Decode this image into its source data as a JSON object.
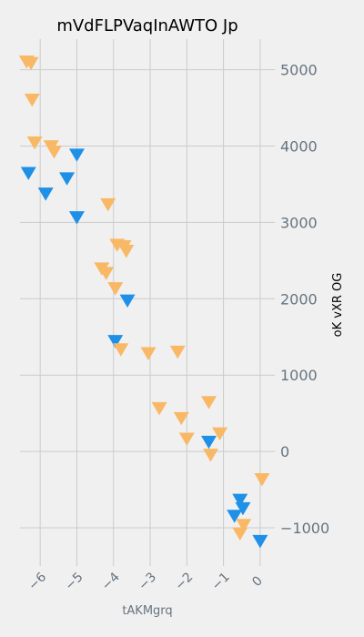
{
  "chart_data": {
    "type": "scatter",
    "title": "mVdFLPVaqInAWTO Jp",
    "xlabel": "tAKMgrq",
    "ylabel": "oK vXR OG",
    "xlim": [
      -6.55,
      0.4
    ],
    "ylim": [
      -1500,
      5400
    ],
    "xticks": [
      -6,
      -5,
      -4,
      -3,
      -2,
      -1,
      0
    ],
    "xtick_labels": [
      "−6",
      "−5",
      "−4",
      "−3",
      "−2",
      "−1",
      "0"
    ],
    "yticks": [
      -1000,
      0,
      1000,
      2000,
      3000,
      4000,
      5000
    ],
    "ytick_labels": [
      "−1000",
      "0",
      "1000",
      "2000",
      "3000",
      "4000",
      "5000"
    ],
    "y_axis_side": "right",
    "grid": true,
    "marker": "triangle-down",
    "colors": [
      "#1e90e8",
      "#f9b865"
    ],
    "series": [
      {
        "color": "#1e90e8",
        "points": [
          [
            -6.32,
            3640
          ],
          [
            -5.85,
            3370
          ],
          [
            -5.0,
            3880
          ],
          [
            -5.27,
            3570
          ],
          [
            -5.0,
            3060
          ],
          [
            -3.62,
            1970
          ],
          [
            -3.95,
            1440
          ],
          [
            -1.4,
            120
          ],
          [
            -0.55,
            -640
          ],
          [
            -0.47,
            -750
          ],
          [
            -0.7,
            -850
          ],
          [
            0.0,
            -1180
          ]
        ]
      },
      {
        "color": "#f9b865",
        "points": [
          [
            -6.37,
            5100
          ],
          [
            -6.25,
            5080
          ],
          [
            -6.22,
            4600
          ],
          [
            -6.15,
            4040
          ],
          [
            -5.7,
            3990
          ],
          [
            -5.62,
            3920
          ],
          [
            -4.15,
            3230
          ],
          [
            -3.9,
            2700
          ],
          [
            -3.72,
            2680
          ],
          [
            -3.65,
            2620
          ],
          [
            -4.32,
            2390
          ],
          [
            -4.2,
            2330
          ],
          [
            -3.95,
            2130
          ],
          [
            -3.8,
            1330
          ],
          [
            -3.05,
            1280
          ],
          [
            -2.25,
            1300
          ],
          [
            -2.75,
            560
          ],
          [
            -2.15,
            430
          ],
          [
            -2.0,
            160
          ],
          [
            -1.4,
            640
          ],
          [
            -1.1,
            230
          ],
          [
            -1.35,
            -50
          ],
          [
            -0.45,
            -970
          ],
          [
            -0.55,
            -1080
          ],
          [
            0.05,
            -370
          ]
        ]
      }
    ]
  }
}
